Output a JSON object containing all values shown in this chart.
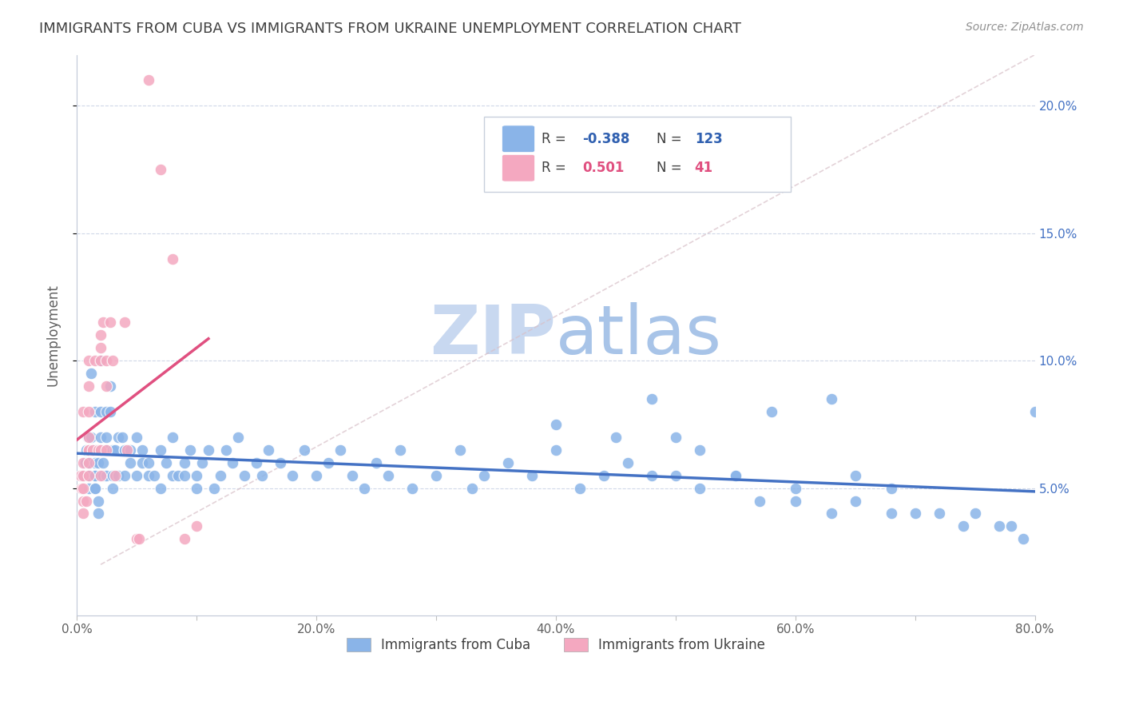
{
  "title": "IMMIGRANTS FROM CUBA VS IMMIGRANTS FROM UKRAINE UNEMPLOYMENT CORRELATION CHART",
  "source": "Source: ZipAtlas.com",
  "ylabel": "Unemployment",
  "xlim": [
    0.0,
    0.8
  ],
  "ylim": [
    0.0,
    0.22
  ],
  "xticks": [
    0.0,
    0.1,
    0.2,
    0.3,
    0.4,
    0.5,
    0.6,
    0.7,
    0.8
  ],
  "xticklabels": [
    "0.0%",
    "",
    "20.0%",
    "",
    "40.0%",
    "",
    "60.0%",
    "",
    "80.0%"
  ],
  "yticks_right": [
    0.05,
    0.1,
    0.15,
    0.2
  ],
  "ytick_right_labels": [
    "5.0%",
    "10.0%",
    "15.0%",
    "20.0%"
  ],
  "cuba_color": "#8ab4e8",
  "ukraine_color": "#f4a8c0",
  "cuba_line_color": "#4472c4",
  "ukraine_line_color": "#e05080",
  "cuba_R": -0.388,
  "cuba_N": 123,
  "ukraine_R": 0.501,
  "ukraine_N": 41,
  "watermark_zip_color": "#c8d8f0",
  "watermark_atlas_color": "#a8c4e8",
  "background_color": "#ffffff",
  "grid_color": "#d0d8e8",
  "title_color": "#404040",
  "axis_label_color": "#606060",
  "right_tick_color": "#4472c4",
  "legend_R_color_cuba": "#3060b0",
  "legend_R_color_ukraine": "#e05080",
  "cuba_scatter_x": [
    0.005,
    0.007,
    0.008,
    0.009,
    0.01,
    0.01,
    0.01,
    0.01,
    0.012,
    0.012,
    0.015,
    0.015,
    0.015,
    0.015,
    0.015,
    0.015,
    0.015,
    0.018,
    0.018,
    0.018,
    0.02,
    0.02,
    0.02,
    0.02,
    0.022,
    0.022,
    0.025,
    0.025,
    0.025,
    0.025,
    0.028,
    0.028,
    0.03,
    0.03,
    0.03,
    0.032,
    0.035,
    0.035,
    0.038,
    0.04,
    0.04,
    0.04,
    0.045,
    0.045,
    0.05,
    0.05,
    0.055,
    0.055,
    0.06,
    0.06,
    0.065,
    0.07,
    0.07,
    0.075,
    0.08,
    0.08,
    0.085,
    0.09,
    0.09,
    0.095,
    0.1,
    0.1,
    0.105,
    0.11,
    0.115,
    0.12,
    0.125,
    0.13,
    0.135,
    0.14,
    0.15,
    0.155,
    0.16,
    0.17,
    0.18,
    0.19,
    0.2,
    0.21,
    0.22,
    0.23,
    0.24,
    0.25,
    0.26,
    0.27,
    0.28,
    0.3,
    0.32,
    0.33,
    0.34,
    0.36,
    0.38,
    0.4,
    0.42,
    0.44,
    0.46,
    0.48,
    0.5,
    0.52,
    0.55,
    0.57,
    0.6,
    0.63,
    0.65,
    0.68,
    0.7,
    0.72,
    0.74,
    0.75,
    0.77,
    0.78,
    0.79,
    0.8,
    0.63,
    0.58,
    0.48,
    0.5,
    0.4,
    0.45,
    0.52,
    0.55,
    0.6,
    0.65,
    0.68
  ],
  "cuba_scatter_y": [
    0.055,
    0.06,
    0.065,
    0.07,
    0.05,
    0.06,
    0.07,
    0.055,
    0.095,
    0.07,
    0.08,
    0.065,
    0.055,
    0.06,
    0.05,
    0.055,
    0.05,
    0.045,
    0.04,
    0.06,
    0.1,
    0.08,
    0.065,
    0.07,
    0.06,
    0.055,
    0.07,
    0.08,
    0.065,
    0.055,
    0.09,
    0.08,
    0.065,
    0.055,
    0.05,
    0.065,
    0.07,
    0.055,
    0.07,
    0.065,
    0.055,
    0.065,
    0.06,
    0.065,
    0.055,
    0.07,
    0.06,
    0.065,
    0.055,
    0.06,
    0.055,
    0.065,
    0.05,
    0.06,
    0.055,
    0.07,
    0.055,
    0.06,
    0.055,
    0.065,
    0.05,
    0.055,
    0.06,
    0.065,
    0.05,
    0.055,
    0.065,
    0.06,
    0.07,
    0.055,
    0.06,
    0.055,
    0.065,
    0.06,
    0.055,
    0.065,
    0.055,
    0.06,
    0.065,
    0.055,
    0.05,
    0.06,
    0.055,
    0.065,
    0.05,
    0.055,
    0.065,
    0.05,
    0.055,
    0.06,
    0.055,
    0.065,
    0.05,
    0.055,
    0.06,
    0.055,
    0.055,
    0.05,
    0.055,
    0.045,
    0.045,
    0.04,
    0.045,
    0.04,
    0.04,
    0.04,
    0.035,
    0.04,
    0.035,
    0.035,
    0.03,
    0.08,
    0.085,
    0.08,
    0.085,
    0.07,
    0.075,
    0.07,
    0.065,
    0.055,
    0.05,
    0.055,
    0.05
  ],
  "ukraine_scatter_x": [
    0.003,
    0.004,
    0.005,
    0.005,
    0.005,
    0.005,
    0.005,
    0.005,
    0.008,
    0.01,
    0.01,
    0.01,
    0.01,
    0.01,
    0.01,
    0.01,
    0.01,
    0.013,
    0.015,
    0.018,
    0.02,
    0.02,
    0.02,
    0.02,
    0.02,
    0.022,
    0.025,
    0.025,
    0.025,
    0.028,
    0.03,
    0.032,
    0.04,
    0.042,
    0.05,
    0.052,
    0.06,
    0.07,
    0.08,
    0.09,
    0.1
  ],
  "ukraine_scatter_y": [
    0.055,
    0.05,
    0.05,
    0.055,
    0.045,
    0.04,
    0.06,
    0.08,
    0.045,
    0.065,
    0.06,
    0.055,
    0.065,
    0.07,
    0.08,
    0.09,
    0.1,
    0.065,
    0.1,
    0.065,
    0.11,
    0.105,
    0.1,
    0.065,
    0.055,
    0.115,
    0.1,
    0.09,
    0.065,
    0.115,
    0.1,
    0.055,
    0.115,
    0.065,
    0.03,
    0.03,
    0.21,
    0.175,
    0.14,
    0.03,
    0.035
  ]
}
